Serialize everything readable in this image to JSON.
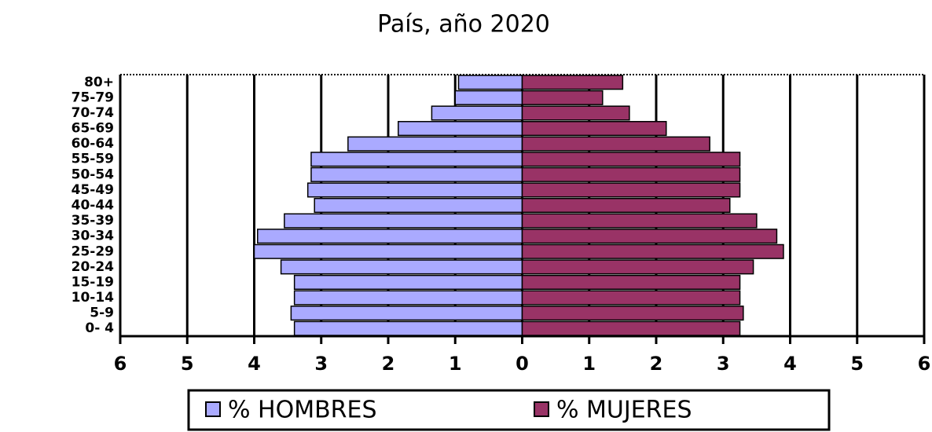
{
  "chart_data": {
    "type": "pyramid",
    "title": "País, año 2020",
    "categories": [
      "0- 4",
      "5-9",
      "10-14",
      "15-19",
      "20-24",
      "25-29",
      "30-34",
      "35-39",
      "40-44",
      "45-49",
      "50-54",
      "55-59",
      "60-64",
      "65-69",
      "70-74",
      "75-79",
      "80+"
    ],
    "series": [
      {
        "name": "% HOMBRES",
        "color": "#aaaaff",
        "values": [
          -3.4,
          -3.45,
          -3.4,
          -3.4,
          -3.6,
          -4.0,
          -3.95,
          -3.55,
          -3.1,
          -3.2,
          -3.15,
          -3.15,
          -2.6,
          -1.85,
          -1.35,
          -1.0,
          -0.95
        ]
      },
      {
        "name": "% MUJERES",
        "color": "#993366",
        "values": [
          3.25,
          3.3,
          3.25,
          3.25,
          3.45,
          3.9,
          3.8,
          3.5,
          3.1,
          3.25,
          3.25,
          3.25,
          2.8,
          2.15,
          1.6,
          1.2,
          1.5
        ]
      }
    ],
    "xlim": [
      -6,
      6
    ],
    "xticks": [
      {
        "value": -6,
        "label": "6"
      },
      {
        "value": -5,
        "label": "5"
      },
      {
        "value": -4,
        "label": "4"
      },
      {
        "value": -3,
        "label": "3"
      },
      {
        "value": -2,
        "label": "2"
      },
      {
        "value": -1,
        "label": "1"
      },
      0,
      1,
      2,
      3,
      4,
      5,
      6
    ],
    "grid": true
  }
}
